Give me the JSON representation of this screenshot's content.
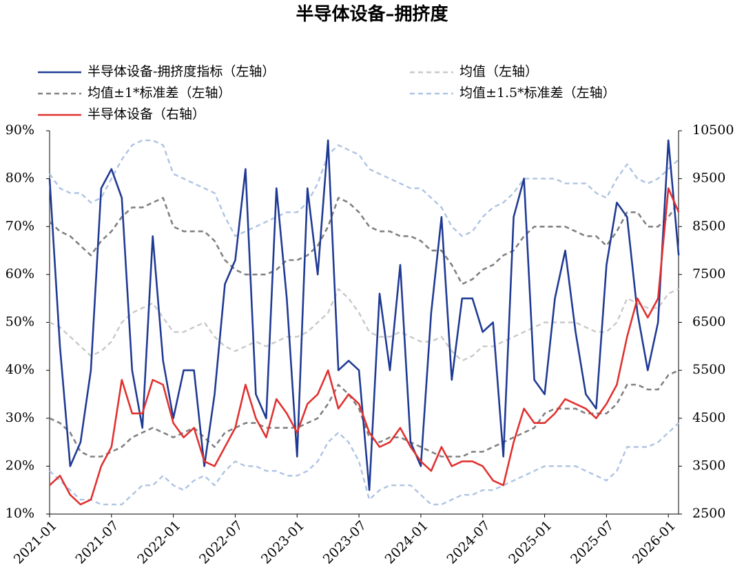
{
  "chart_data": {
    "type": "line",
    "title": "半导体设备–拥挤度",
    "x": [
      "2021-01",
      "2021-02",
      "2021-03",
      "2021-04",
      "2021-05",
      "2021-06",
      "2021-07",
      "2021-08",
      "2021-09",
      "2021-10",
      "2021-11",
      "2021-12",
      "2022-01",
      "2022-02",
      "2022-03",
      "2022-04",
      "2022-05",
      "2022-06",
      "2022-07",
      "2022-08",
      "2022-09",
      "2022-10",
      "2022-11",
      "2022-12",
      "2023-01",
      "2023-02",
      "2023-03",
      "2023-04",
      "2023-05",
      "2023-06",
      "2023-07",
      "2023-08",
      "2023-09",
      "2023-10",
      "2023-11",
      "2023-12",
      "2024-01",
      "2024-02",
      "2024-03",
      "2024-04",
      "2024-05",
      "2024-06",
      "2024-07",
      "2024-08",
      "2024-09",
      "2024-10",
      "2024-11",
      "2024-12",
      "2025-01",
      "2025-02",
      "2025-03",
      "2025-04",
      "2025-05",
      "2025-06",
      "2025-07",
      "2025-08",
      "2025-09",
      "2025-10",
      "2025-11",
      "2025-12",
      "2026-01",
      "2026-02"
    ],
    "x_label_every": 6,
    "ylim": [
      10,
      90
    ],
    "yticks": [
      {
        "value": 10,
        "label": "10%"
      },
      {
        "value": 20,
        "label": "20%"
      },
      {
        "value": 30,
        "label": "30%"
      },
      {
        "value": 40,
        "label": "40%"
      },
      {
        "value": 50,
        "label": "50%"
      },
      {
        "value": 60,
        "label": "60%"
      },
      {
        "value": 70,
        "label": "70%"
      },
      {
        "value": 80,
        "label": "80%"
      },
      {
        "value": 90,
        "label": "90%"
      }
    ],
    "y2lim": [
      2500,
      10500
    ],
    "y2ticks": [
      2500,
      3500,
      4500,
      5500,
      6500,
      7500,
      8500,
      9500,
      10500
    ],
    "series": [
      {
        "name": "半导体设备-拥挤度指标（左轴）",
        "color": "#1f3a93",
        "width": 2.6,
        "values": [
          80,
          45,
          20,
          25,
          40,
          78,
          82,
          76,
          40,
          28,
          68,
          42,
          30,
          40,
          40,
          20,
          35,
          58,
          63,
          82,
          35,
          30,
          78,
          55,
          22,
          78,
          60,
          88,
          40,
          42,
          40,
          15,
          56,
          40,
          62,
          25,
          20,
          52,
          72,
          38,
          55,
          55,
          48,
          50,
          22,
          72,
          80,
          38,
          35,
          55,
          65,
          48,
          35,
          32,
          62,
          75,
          72,
          52,
          40,
          50,
          88,
          64
        ]
      },
      {
        "name": "均值（左轴）",
        "color": "#c8c8c8",
        "dashed": true,
        "width": 2.4,
        "values": [
          50,
          49,
          47,
          45,
          43,
          44,
          46,
          50,
          52,
          53,
          54,
          51,
          48,
          48,
          49,
          50,
          47,
          45,
          44,
          45,
          46,
          45,
          46,
          47,
          47,
          48,
          50,
          52,
          57,
          55,
          52,
          48,
          47,
          47,
          48,
          47,
          46,
          46,
          47,
          44,
          42,
          43,
          45,
          45,
          46,
          47,
          48,
          49,
          50,
          50,
          50,
          50,
          49,
          48,
          48,
          50,
          55,
          54,
          53,
          53,
          56,
          57
        ]
      },
      {
        "name": "均值±1*标准差（左轴）",
        "color": "#808080",
        "dashed": true,
        "width": 2.6,
        "values": [
          71,
          69,
          68,
          66,
          64,
          67,
          69,
          72,
          74,
          74,
          75,
          76,
          70,
          69,
          69,
          69,
          67,
          63,
          61,
          60,
          60,
          60,
          61,
          63,
          63,
          64,
          66,
          70,
          76,
          75,
          73,
          70,
          69,
          69,
          68,
          68,
          67,
          65,
          65,
          62,
          58,
          59,
          61,
          62,
          64,
          65,
          68,
          70,
          70,
          70,
          70,
          69,
          68,
          68,
          66,
          69,
          73,
          73,
          70,
          70,
          72,
          75
        ],
        "lower": [
          30,
          29,
          27,
          23,
          22,
          22,
          23,
          24,
          26,
          27,
          28,
          27,
          26,
          27,
          28,
          26,
          24,
          27,
          28,
          29,
          29,
          28,
          28,
          28,
          28,
          29,
          30,
          33,
          37,
          35,
          32,
          26,
          25,
          26,
          26,
          25,
          24,
          23,
          22,
          22,
          22,
          23,
          23,
          24,
          25,
          26,
          27,
          28,
          31,
          32,
          32,
          32,
          31,
          31,
          31,
          33,
          37,
          37,
          36,
          36,
          39,
          40
        ]
      },
      {
        "name": "均值±1.5*标准差（左轴）",
        "color": "#adc3e3",
        "dashed": true,
        "width": 2.4,
        "values": [
          81,
          78,
          77,
          77,
          75,
          76,
          80,
          84,
          87,
          88,
          88,
          87,
          81,
          80,
          79,
          78,
          77,
          72,
          68,
          69,
          70,
          71,
          72,
          73,
          73,
          75,
          79,
          85,
          87,
          86,
          85,
          82,
          81,
          80,
          79,
          78,
          78,
          76,
          74,
          70,
          68,
          69,
          72,
          74,
          75,
          77,
          80,
          80,
          80,
          80,
          79,
          79,
          79,
          77,
          76,
          80,
          83,
          80,
          79,
          80,
          82,
          84
        ],
        "lower": [
          19,
          17,
          15,
          13,
          13,
          12,
          12,
          12,
          14,
          16,
          16,
          18,
          16,
          15,
          17,
          18,
          16,
          19,
          21,
          20,
          20,
          19,
          19,
          18,
          18,
          19,
          21,
          25,
          27,
          25,
          21,
          13,
          15,
          16,
          16,
          16,
          14,
          12,
          12,
          13,
          14,
          14,
          15,
          15,
          16,
          17,
          18,
          19,
          20,
          20,
          20,
          20,
          19,
          18,
          17,
          19,
          24,
          24,
          24,
          25,
          27,
          29
        ]
      },
      {
        "name": "半导体设备（右轴）",
        "color": "#e0312f",
        "axis": "y2",
        "width": 2.6,
        "values": [
          3100,
          3300,
          2900,
          2700,
          2800,
          3500,
          3900,
          5300,
          4600,
          4600,
          5300,
          5200,
          4400,
          4100,
          4300,
          3600,
          3500,
          3900,
          4300,
          5200,
          4500,
          4100,
          4900,
          4600,
          4200,
          4800,
          5000,
          5500,
          4700,
          5000,
          4800,
          4200,
          3900,
          4000,
          4300,
          3900,
          3600,
          3400,
          3900,
          3500,
          3600,
          3600,
          3500,
          3200,
          3100,
          4000,
          4700,
          4400,
          4400,
          4600,
          4900,
          4800,
          4700,
          4500,
          4800,
          5200,
          6200,
          7000,
          6600,
          7000,
          9300,
          8800
        ]
      }
    ]
  }
}
